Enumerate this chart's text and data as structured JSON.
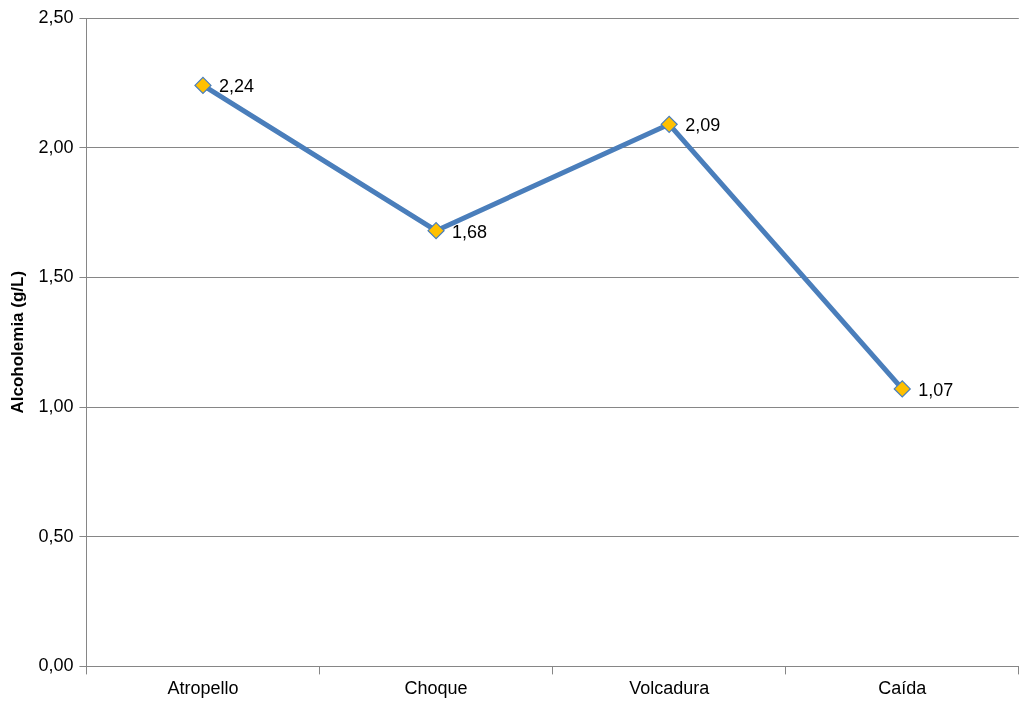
{
  "chart_data": {
    "type": "line",
    "ylabel": "Alcoholemia (g/L)",
    "categories": [
      "Atropello",
      "Choque",
      "Volcadura",
      "Caída"
    ],
    "series": [
      {
        "color": "#4a7ebb",
        "values": [
          2.24,
          1.68,
          2.09,
          1.07
        ],
        "value_labels": [
          "2,24",
          "1,68",
          "2,09",
          "1,07"
        ]
      }
    ],
    "ylim": [
      0,
      2.5
    ],
    "yticks": [
      {
        "value": 0,
        "label": "0,00"
      },
      {
        "value": 0.5,
        "label": "0,50"
      },
      {
        "value": 1,
        "label": "1,00"
      },
      {
        "value": 1.5,
        "label": "1,50"
      },
      {
        "value": 2,
        "label": "2,00"
      },
      {
        "value": 2.5,
        "label": "2,50"
      }
    ],
    "grid": "y",
    "legend": false,
    "marker": "diamond",
    "line_style": "solid"
  }
}
